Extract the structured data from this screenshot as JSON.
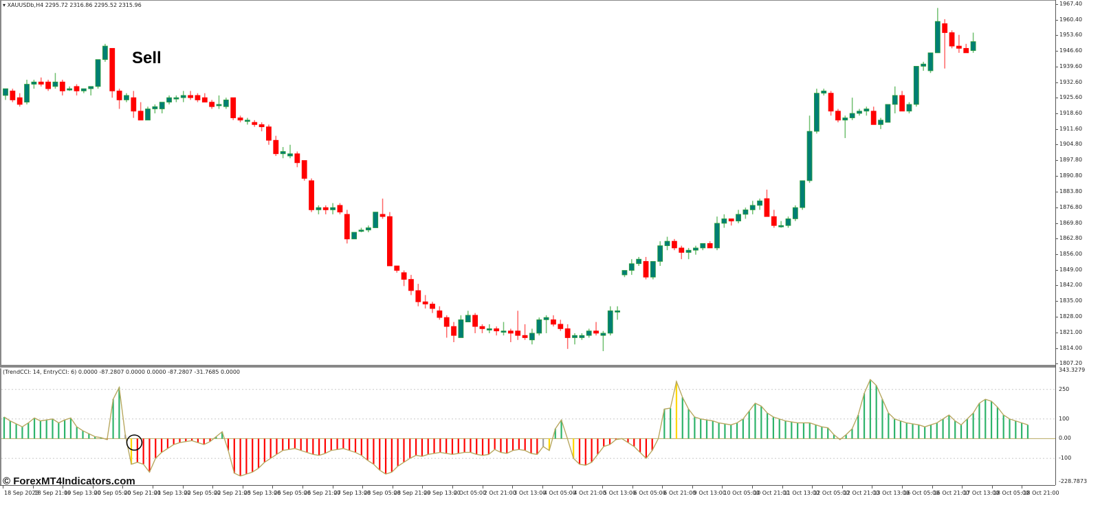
{
  "window": {
    "symbol_header": "XAUUSDb,H4",
    "ohlc": "2295.72 2316.86 2295.52 2315.96"
  },
  "indicator": {
    "header": "(TrendCCI: 14, EntryCCI: 6)",
    "values": "0.0000 -87.2807 0.0000 0.0000 -87.2807 -31.7685 0.0000",
    "axis_labels": [
      "343.3279",
      "250",
      "100",
      "0.00",
      "-100",
      "-228.7873"
    ]
  },
  "annotations": {
    "sell": "Sell",
    "watermark": "© ForexMT4Indicators.com"
  },
  "colors": {
    "bull": "#007f73",
    "bull_outline": "#2e9e3a",
    "bear": "#ff0000",
    "trend_green": "#2db36a",
    "entry_red": "#ff0000",
    "neutral_gray": "#a0a0a0",
    "signal_yellow": "#ffd700",
    "cci_line": "#b8a860"
  },
  "chart_data": [
    {
      "type": "candlestick",
      "title": "XAUUSDb,H4",
      "ylim": [
        1807.2,
        1967.4
      ],
      "y_ticks": [
        "1967.40",
        "1960.40",
        "1953.60",
        "1946.60",
        "1939.60",
        "1932.60",
        "1925.60",
        "1918.60",
        "1911.60",
        "1904.80",
        "1897.80",
        "1890.80",
        "1883.80",
        "1876.80",
        "1869.80",
        "1862.80",
        "1856.00",
        "1849.00",
        "1842.00",
        "1835.00",
        "1828.00",
        "1821.00",
        "1814.00",
        "1807.20"
      ],
      "x_ticks": [
        "18 Sep 2023",
        "18 Sep 21:00",
        "19 Sep 13:00",
        "20 Sep 05:00",
        "20 Sep 21:00",
        "21 Sep 13:00",
        "22 Sep 05:00",
        "22 Sep 21:00",
        "25 Sep 13:00",
        "26 Sep 05:00",
        "26 Sep 21:00",
        "27 Sep 13:00",
        "28 Sep 05:00",
        "28 Sep 21:00",
        "29 Sep 13:00",
        "2 Oct 05:00",
        "2 Oct 21:00",
        "3 Oct 13:00",
        "4 Oct 05:00",
        "4 Oct 21:00",
        "5 Oct 13:00",
        "6 Oct 05:00",
        "6 Oct 21:00",
        "9 Oct 13:00",
        "10 Oct 05:00",
        "10 Oct 21:00",
        "11 Oct 13:00",
        "12 Oct 05:00",
        "12 Oct 21:00",
        "13 Oct 13:00",
        "16 Oct 05:00",
        "16 Oct 21:00",
        "17 Oct 13:00",
        "18 Oct 05:00",
        "18 Oct 21:00"
      ],
      "candles": [
        [
          1927,
          1930,
          1925,
          1930
        ],
        [
          1929,
          1930,
          1924,
          1925
        ],
        [
          1926,
          1928,
          1922,
          1923
        ],
        [
          1924,
          1934,
          1923,
          1932
        ],
        [
          1932,
          1934,
          1930,
          1933
        ],
        [
          1933,
          1935,
          1931,
          1932
        ],
        [
          1933,
          1934,
          1929,
          1930
        ],
        [
          1931,
          1937,
          1930,
          1933
        ],
        [
          1933,
          1934,
          1927,
          1929
        ],
        [
          1930,
          1931,
          1929,
          1930
        ],
        [
          1931,
          1932,
          1927,
          1929
        ],
        [
          1929,
          1930,
          1928,
          1930
        ],
        [
          1930,
          1931,
          1927,
          1931
        ],
        [
          1931,
          1943,
          1930,
          1943
        ],
        [
          1943,
          1950,
          1942,
          1949
        ],
        [
          1948,
          1948,
          1926,
          1929
        ],
        [
          1929,
          1930,
          1921,
          1925
        ],
        [
          1925,
          1928,
          1924,
          1927
        ],
        [
          1926,
          1929,
          1917,
          1920
        ],
        [
          1920,
          1924,
          1916,
          1916
        ],
        [
          1916,
          1922,
          1916,
          1921
        ],
        [
          1921,
          1923,
          1919,
          1922
        ],
        [
          1921,
          1924,
          1919,
          1924
        ],
        [
          1924,
          1927,
          1923,
          1926
        ],
        [
          1926,
          1927,
          1924,
          1926
        ],
        [
          1926,
          1929,
          1924,
          1927
        ],
        [
          1927,
          1929,
          1925,
          1926
        ],
        [
          1927,
          1928,
          1924,
          1925
        ],
        [
          1926,
          1928,
          1924,
          1924
        ],
        [
          1924,
          1925,
          1921,
          1922
        ],
        [
          1923,
          1927,
          1921,
          1923
        ],
        [
          1922,
          1926,
          1921,
          1925
        ],
        [
          1926,
          1926,
          1916,
          1917
        ],
        [
          1917,
          1918,
          1915,
          1916
        ],
        [
          1916,
          1917,
          1914,
          1916
        ],
        [
          1915,
          1916,
          1913,
          1914
        ],
        [
          1914,
          1915,
          1911,
          1913
        ],
        [
          1913,
          1914,
          1905,
          1907
        ],
        [
          1907,
          1909,
          1900,
          1901
        ],
        [
          1901,
          1904,
          1899,
          1902
        ],
        [
          1900,
          1905,
          1899,
          1901
        ],
        [
          1901,
          1902,
          1895,
          1897
        ],
        [
          1898,
          1898,
          1889,
          1890
        ],
        [
          1889,
          1890,
          1875,
          1876
        ],
        [
          1876,
          1878,
          1874,
          1877
        ],
        [
          1877,
          1878,
          1874,
          1876
        ],
        [
          1876,
          1879,
          1874,
          1877
        ],
        [
          1878,
          1879,
          1874,
          1875
        ],
        [
          1874,
          1876,
          1861,
          1863
        ],
        [
          1863,
          1866,
          1863,
          1866
        ],
        [
          1867,
          1868,
          1866,
          1867
        ],
        [
          1867,
          1869,
          1866,
          1868
        ],
        [
          1868,
          1875,
          1868,
          1875
        ],
        [
          1874,
          1881,
          1872,
          1873
        ],
        [
          1873,
          1875,
          1851,
          1851
        ],
        [
          1851,
          1851,
          1848,
          1849
        ],
        [
          1848,
          1849,
          1842,
          1845
        ],
        [
          1845,
          1847,
          1838,
          1840
        ],
        [
          1840,
          1843,
          1833,
          1835
        ],
        [
          1835,
          1838,
          1832,
          1834
        ],
        [
          1834,
          1835,
          1830,
          1832
        ],
        [
          1831,
          1833,
          1827,
          1828
        ],
        [
          1828,
          1829,
          1819,
          1824
        ],
        [
          1824,
          1826,
          1817,
          1820
        ],
        [
          1819,
          1829,
          1819,
          1827
        ],
        [
          1826,
          1831,
          1826,
          1829
        ],
        [
          1829,
          1830,
          1821,
          1824
        ],
        [
          1824,
          1825,
          1821,
          1823
        ],
        [
          1823,
          1825,
          1821,
          1823
        ],
        [
          1823,
          1824,
          1820,
          1822
        ],
        [
          1822,
          1826,
          1820,
          1822
        ],
        [
          1822,
          1823,
          1817,
          1821
        ],
        [
          1822,
          1831,
          1818,
          1820
        ],
        [
          1820,
          1825,
          1818,
          1819
        ],
        [
          1818,
          1823,
          1816,
          1821
        ],
        [
          1821,
          1828,
          1820,
          1827
        ],
        [
          1827,
          1829,
          1821,
          1828
        ],
        [
          1827,
          1829,
          1824,
          1825
        ],
        [
          1825,
          1827,
          1822,
          1823
        ],
        [
          1823,
          1825,
          1814,
          1819
        ],
        [
          1819,
          1821,
          1816,
          1820
        ],
        [
          1819,
          1821,
          1818,
          1820
        ],
        [
          1820,
          1823,
          1819,
          1822
        ],
        [
          1822,
          1826,
          1820,
          1821
        ],
        [
          1820,
          1822,
          1813,
          1821
        ],
        [
          1821,
          1833,
          1820,
          1831
        ],
        [
          1831,
          1833,
          1827,
          1831
        ],
        [
          1847,
          1849,
          1846,
          1849
        ],
        [
          1849,
          1854,
          1847,
          1852
        ],
        [
          1852,
          1855,
          1851,
          1854
        ],
        [
          1853,
          1855,
          1845,
          1846
        ],
        [
          1846,
          1853,
          1845,
          1853
        ],
        [
          1853,
          1862,
          1851,
          1860
        ],
        [
          1860,
          1864,
          1858,
          1862
        ],
        [
          1862,
          1863,
          1858,
          1859
        ],
        [
          1859,
          1860,
          1854,
          1857
        ],
        [
          1857,
          1859,
          1854,
          1858
        ],
        [
          1858,
          1860,
          1856,
          1859
        ],
        [
          1859,
          1861,
          1858,
          1861
        ],
        [
          1861,
          1862,
          1859,
          1859
        ],
        [
          1859,
          1873,
          1858,
          1870
        ],
        [
          1870,
          1874,
          1868,
          1872
        ],
        [
          1872,
          1872,
          1869,
          1871
        ],
        [
          1871,
          1876,
          1870,
          1874
        ],
        [
          1874,
          1877,
          1872,
          1876
        ],
        [
          1876,
          1880,
          1874,
          1878
        ],
        [
          1878,
          1881,
          1876,
          1880
        ],
        [
          1881,
          1885,
          1873,
          1873
        ],
        [
          1873,
          1876,
          1868,
          1869
        ],
        [
          1869,
          1871,
          1868,
          1869
        ],
        [
          1869,
          1873,
          1868,
          1872
        ],
        [
          1872,
          1878,
          1871,
          1877
        ],
        [
          1877,
          1889,
          1876,
          1889
        ],
        [
          1889,
          1918,
          1888,
          1911
        ],
        [
          1911,
          1930,
          1910,
          1928
        ],
        [
          1928,
          1930,
          1927,
          1929
        ],
        [
          1928,
          1929,
          1918,
          1920
        ],
        [
          1920,
          1921,
          1915,
          1916
        ],
        [
          1916,
          1918,
          1908,
          1917
        ],
        [
          1917,
          1926,
          1916,
          1919
        ],
        [
          1919,
          1921,
          1918,
          1920
        ],
        [
          1920,
          1922,
          1918,
          1921
        ],
        [
          1920,
          1922,
          1914,
          1914
        ],
        [
          1914,
          1917,
          1912,
          1916
        ],
        [
          1915,
          1922,
          1915,
          1923
        ],
        [
          1923,
          1931,
          1919,
          1927
        ],
        [
          1927,
          1929,
          1921,
          1920
        ],
        [
          1920,
          1924,
          1919,
          1923
        ],
        [
          1923,
          1940,
          1922,
          1940
        ],
        [
          1940,
          1942,
          1938,
          1941
        ],
        [
          1938,
          1946,
          1937,
          1946
        ],
        [
          1946,
          1966,
          1946,
          1960
        ],
        [
          1959,
          1961,
          1939,
          1955
        ],
        [
          1955,
          1956,
          1948,
          1949
        ],
        [
          1949,
          1954,
          1946,
          1948
        ],
        [
          1948,
          1950,
          1946,
          1946
        ],
        [
          1947,
          1955,
          1946,
          1951
        ]
      ]
    },
    {
      "type": "bar",
      "title": "(TrendCCI: 14, EntryCCI: 6)",
      "ylim": [
        -228.7873,
        343.3279
      ],
      "y_ticks": [
        250,
        100,
        0,
        -100
      ],
      "series": [
        {
          "name": "TrendCCI",
          "values": [
            110,
            90,
            75,
            60,
            80,
            105,
            90,
            95,
            100,
            80,
            95,
            105,
            60,
            40,
            25,
            10,
            5,
            -5,
            200,
            260,
            20,
            -130,
            -120,
            -130,
            -170,
            -100,
            -70,
            -50,
            -30,
            -20,
            -15,
            -10,
            -20,
            -30,
            -15,
            10,
            35,
            -60,
            -175,
            -190,
            -180,
            -170,
            -150,
            -120,
            -100,
            -80,
            -60,
            -55,
            -50,
            -60,
            -70,
            -80,
            -85,
            -75,
            -60,
            -55,
            -50,
            -60,
            -70,
            -85,
            -110,
            -130,
            -160,
            -180,
            -170,
            -140,
            -120,
            -100,
            -85,
            -90,
            -80,
            -75,
            -70,
            -75,
            -80,
            -75,
            -70,
            -70,
            -80,
            -85,
            -80,
            -55,
            -70,
            -75,
            -60,
            -55,
            -60,
            -75,
            -80,
            -40,
            -60,
            50,
            95,
            0,
            -100,
            -130,
            -135,
            -120,
            -80,
            -40,
            -30,
            -5,
            0,
            -20,
            -40,
            -70,
            -100,
            -60,
            0,
            150,
            155,
            290,
            210,
            150,
            110,
            100,
            95,
            90,
            80,
            75,
            70,
            80,
            100,
            140,
            180,
            165,
            130,
            110,
            100,
            90,
            85,
            80,
            80,
            80,
            70,
            60,
            55,
            20,
            -5,
            20,
            50,
            120,
            230,
            300,
            270,
            200,
            130,
            100,
            90,
            80,
            75,
            70,
            60,
            70,
            80,
            100,
            120,
            90,
            70,
            100,
            130,
            180,
            200,
            190,
            160,
            120,
            100,
            90,
            80,
            70
          ]
        }
      ],
      "levels": [
        250,
        100,
        0,
        -100
      ]
    }
  ]
}
